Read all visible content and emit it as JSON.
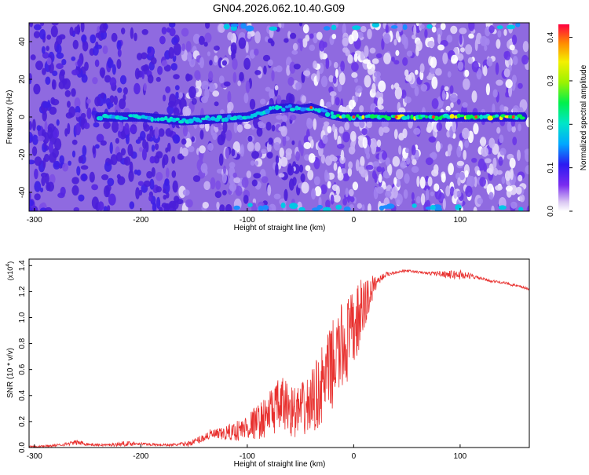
{
  "title": "GN04.2026.062.10.40.G09",
  "chart_data": [
    {
      "type": "heatmap",
      "xlabel": "Height of straight line (km)",
      "ylabel": "Frequency (Hz)",
      "xlim": [
        -305,
        165
      ],
      "ylim": [
        -50,
        50
      ],
      "xticks": [
        "-300",
        "-200",
        "-100",
        "0",
        "100"
      ],
      "yticks": [
        "-40",
        "-20",
        "0",
        "20",
        "40"
      ],
      "colorbar": {
        "label": "Normalized spectral amplitude",
        "range": [
          0,
          0.43
        ],
        "ticks": [
          "0.0",
          "0.1",
          "0.2",
          "0.3",
          "0.4"
        ]
      },
      "signal_ridge": {
        "description_free": true,
        "x": [
          -240,
          -200,
          -160,
          -130,
          -100,
          -80,
          -60,
          -50,
          -40,
          -30,
          -20,
          -10,
          0,
          50,
          100,
          160
        ],
        "y": [
          0,
          0,
          -2,
          -1,
          0,
          4,
          5,
          4,
          5,
          3,
          1,
          0,
          0,
          0,
          0,
          0
        ]
      }
    },
    {
      "type": "line",
      "xlabel": "Height of straight line (km)",
      "ylabel": "SNR (10 * v/v)",
      "ylabel_multiplier": "(x10",
      "ylabel_exponent": "4",
      "ylabel_multiplier_end": ")",
      "xlim": [
        -305,
        165
      ],
      "ylim": [
        0,
        1.45
      ],
      "xticks": [
        "-300",
        "-200",
        "-100",
        "0",
        "100"
      ],
      "yticks": [
        "0.0",
        "0.2",
        "0.4",
        "0.6",
        "0.8",
        "1.0",
        "1.2",
        "1.4"
      ],
      "series": [
        {
          "color": "#e8302e",
          "x": [
            -305,
            -290,
            -275,
            -260,
            -245,
            -230,
            -215,
            -200,
            -185,
            -170,
            -155,
            -145,
            -135,
            -125,
            -115,
            -105,
            -95,
            -85,
            -75,
            -65,
            -55,
            -45,
            -35,
            -25,
            -15,
            -5,
            0,
            5,
            10,
            15,
            20,
            25,
            30,
            40,
            50,
            60,
            70,
            80,
            90,
            100,
            110,
            120,
            130,
            140,
            150,
            160,
            165
          ],
          "y": [
            0.01,
            0.01,
            0.02,
            0.04,
            0.02,
            0.02,
            0.03,
            0.03,
            0.02,
            0.02,
            0.03,
            0.06,
            0.1,
            0.1,
            0.12,
            0.14,
            0.18,
            0.22,
            0.3,
            0.33,
            0.27,
            0.3,
            0.4,
            0.55,
            0.72,
            0.83,
            0.9,
            1.0,
            1.08,
            1.18,
            1.26,
            1.3,
            1.33,
            1.35,
            1.36,
            1.35,
            1.34,
            1.34,
            1.33,
            1.33,
            1.32,
            1.3,
            1.28,
            1.27,
            1.25,
            1.23,
            1.22
          ],
          "noise": [
            0.01,
            0.01,
            0.01,
            0.02,
            0.01,
            0.01,
            0.02,
            0.01,
            0.01,
            0.01,
            0.02,
            0.03,
            0.04,
            0.05,
            0.07,
            0.09,
            0.12,
            0.15,
            0.2,
            0.22,
            0.2,
            0.22,
            0.28,
            0.32,
            0.35,
            0.35,
            0.3,
            0.28,
            0.25,
            0.15,
            0.06,
            0.03,
            0.02,
            0.01,
            0.01,
            0.01,
            0.01,
            0.02,
            0.03,
            0.04,
            0.02,
            0.01,
            0.01,
            0.01,
            0.01,
            0.01,
            0.01
          ]
        }
      ]
    }
  ]
}
